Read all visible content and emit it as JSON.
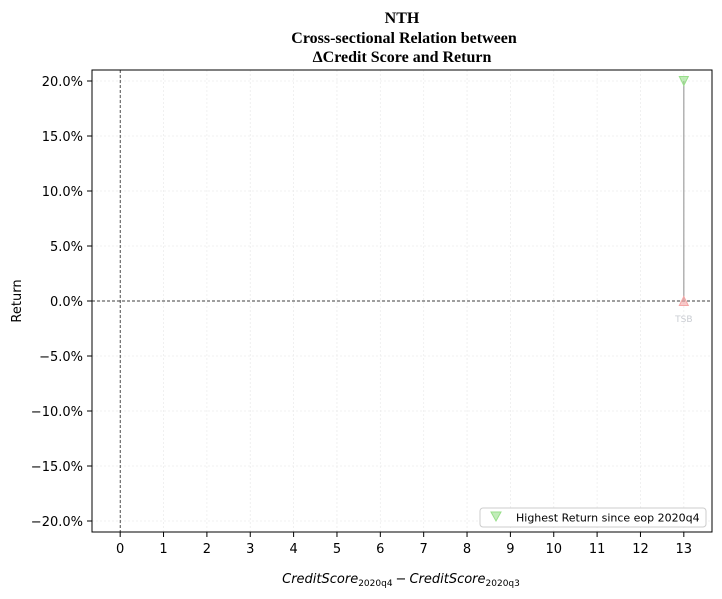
{
  "chart_data": {
    "type": "scatter",
    "title_lines": [
      "NTH",
      "Cross-sectional Relation between",
      "ΔCredit Score and Return"
    ],
    "xlabel": {
      "term1": "CreditScore",
      "sub1": "2020q4",
      "op": "−",
      "term2": "CreditScore",
      "sub2": "2020q3"
    },
    "ylabel": "Return",
    "xlim": [
      -0.65,
      13.65
    ],
    "ylim": [
      -21.0,
      21.0
    ],
    "xticks": [
      0,
      1,
      2,
      3,
      4,
      5,
      6,
      7,
      8,
      9,
      10,
      11,
      12,
      13
    ],
    "yticks": [
      -20,
      -15,
      -10,
      -5,
      0,
      5,
      10,
      15,
      20
    ],
    "ytick_labels": [
      "−20.0%",
      "−15.0%",
      "−10.0%",
      "−5.0%",
      "0.0%",
      "5.0%",
      "10.0%",
      "15.0%",
      "20.0%"
    ],
    "grid": true,
    "reference_lines": {
      "x": 0,
      "y": 0
    },
    "series": [
      {
        "name": "Highest Return since eop 2020q4",
        "marker": "triangle-down",
        "color": "#98df8a",
        "points": [
          {
            "x": 13,
            "y": 20.0
          }
        ]
      },
      {
        "marker": "triangle-up",
        "color": "#f4a6a6",
        "points": [
          {
            "x": 13,
            "y": 0.0
          }
        ]
      }
    ],
    "connectors": [
      {
        "x": 13,
        "y_from": 0.0,
        "y_to": 20.0,
        "color": "#a0a0a0"
      }
    ],
    "annotations": [
      {
        "text": "TSB",
        "x": 13,
        "y": 0.0
      }
    ],
    "legend": {
      "placement": "lower-right",
      "entries": [
        "Highest Return since eop 2020q4"
      ]
    }
  }
}
